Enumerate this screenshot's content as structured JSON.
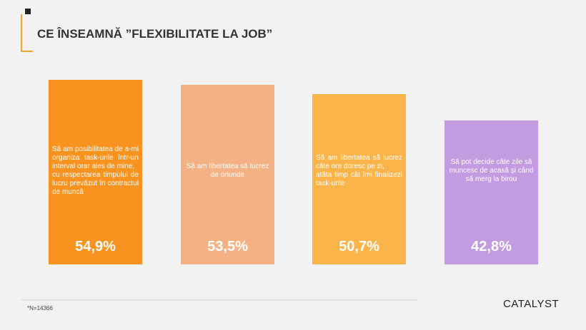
{
  "chart_data": {
    "type": "bar",
    "title": "CE ÎNSEAMNĂ ”FLEXIBILITATE LA JOB”",
    "categories": [
      "Să am posibilitatea de a-mi organiza task-urile într-un interval orar ales de mine,\ncu respectarea timpului de lucru prevăzut în contractul de muncă",
      "Să am libertatea să lucrez de oriunde",
      "Să am libertatea să lucrez câte ore doresc pe zi,\natâta timp cât îmi finalizezi task-urile",
      "Să pot decide câte zile să muncesc de acasă și când să merg la birou"
    ],
    "values": [
      54.9,
      53.5,
      50.7,
      42.8
    ],
    "value_labels": [
      "54,9%",
      "53,5%",
      "50,7%",
      "42,8%"
    ],
    "colors": [
      "#f7931e",
      "#f4b183",
      "#fbb44a",
      "#c39be0"
    ],
    "footnote": "*N=14366",
    "logo": "CATALYST"
  }
}
